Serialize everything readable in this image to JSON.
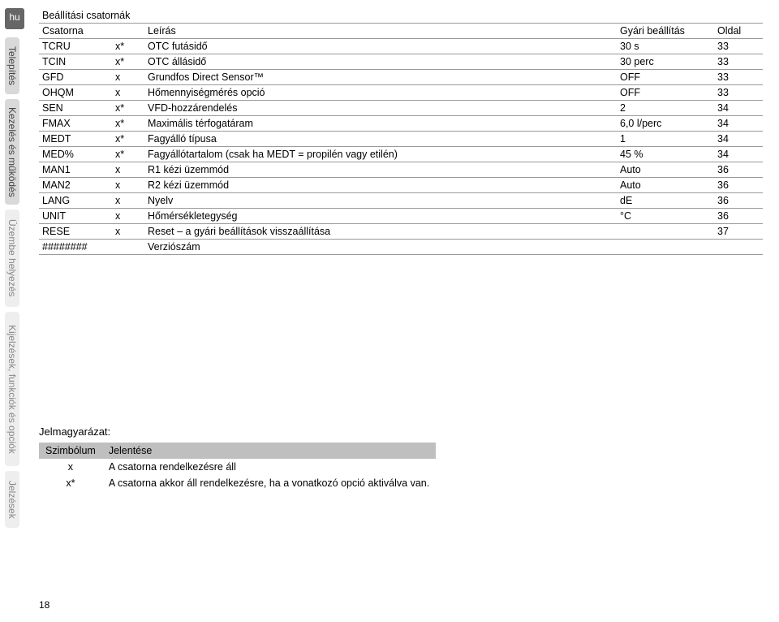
{
  "sidebar": {
    "lang": "hu",
    "tabs": [
      "Telepítés",
      "Kezelés és működés",
      "Üzembe helyezés",
      "Kijelzések, funkciók és opciók",
      "Jelzések"
    ]
  },
  "table": {
    "title": "Beállítási csatornák",
    "headers": {
      "channel": "Csatorna",
      "flag": "",
      "desc": "Leírás",
      "default": "Gyári beállítás",
      "page": "Oldal"
    },
    "rows": [
      {
        "ch": "TCRU",
        "flag": "x*",
        "desc": "OTC futásidő",
        "def": "30 s",
        "page": "33"
      },
      {
        "ch": "TCIN",
        "flag": "x*",
        "desc": "OTC állásidő",
        "def": "30 perc",
        "page": "33"
      },
      {
        "ch": "GFD",
        "flag": "x",
        "desc": "Grundfos Direct Sensor™",
        "def": "OFF",
        "page": "33"
      },
      {
        "ch": "OHQM",
        "flag": "x",
        "desc": "Hőmennyiségmérés opció",
        "def": "OFF",
        "page": "33"
      },
      {
        "ch": "SEN",
        "flag": "x*",
        "desc": "VFD-hozzárendelés",
        "def": "2",
        "page": "34"
      },
      {
        "ch": "FMAX",
        "flag": "x*",
        "desc": "Maximális térfogatáram",
        "def": "6,0 l/perc",
        "page": "34"
      },
      {
        "ch": "MEDT",
        "flag": "x*",
        "desc": "Fagyálló típusa",
        "def": "1",
        "page": "34"
      },
      {
        "ch": "MED%",
        "flag": "x*",
        "desc": "Fagyállótartalom (csak ha MEDT = propilén vagy etilén)",
        "def": "45 %",
        "page": "34"
      },
      {
        "ch": "MAN1",
        "flag": "x",
        "desc": "R1 kézi üzemmód",
        "def": "Auto",
        "page": "36"
      },
      {
        "ch": "MAN2",
        "flag": "x",
        "desc": "R2 kézi üzemmód",
        "def": "Auto",
        "page": "36"
      },
      {
        "ch": "LANG",
        "flag": "x",
        "desc": "Nyelv",
        "def": "dE",
        "page": "36"
      },
      {
        "ch": "UNIT",
        "flag": "x",
        "desc": "Hőmérsékletegység",
        "def": "°C",
        "page": "36"
      },
      {
        "ch": "RESE",
        "flag": "x",
        "desc": "Reset – a gyári beállítások visszaállítása",
        "def": "",
        "page": "37"
      },
      {
        "ch": "########",
        "flag": "",
        "desc": "Verziószám",
        "def": "",
        "page": ""
      }
    ]
  },
  "legend": {
    "title": "Jelmagyarázat:",
    "headers": {
      "symbol": "Szimbólum",
      "meaning": "Jelentése"
    },
    "rows": [
      {
        "sym": "x",
        "meaning": "A csatorna rendelkezésre áll"
      },
      {
        "sym": "x*",
        "meaning": "A csatorna akkor áll rendelkezésre, ha a vonatkozó opció aktiválva van."
      }
    ]
  },
  "page_number": "18"
}
